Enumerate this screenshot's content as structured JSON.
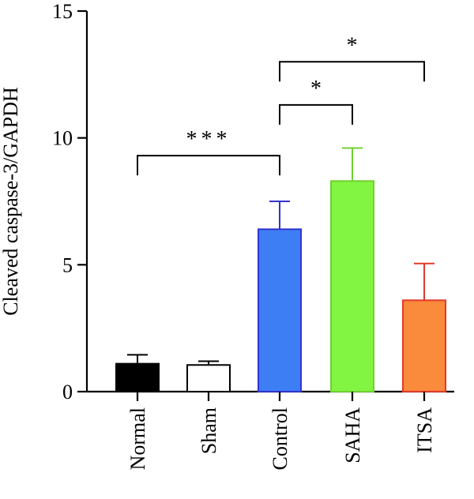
{
  "chart_data": {
    "type": "bar",
    "title": "",
    "xlabel": "",
    "ylabel": "Cleaved caspase-3/GAPDH",
    "ylim": [
      0,
      15
    ],
    "yticks": [
      "0",
      "5",
      "10",
      "15"
    ],
    "ytick_values": [
      0,
      5,
      10,
      15
    ],
    "categories": [
      "Normal",
      "Sham",
      "Control",
      "SAHA",
      "ITSA"
    ],
    "values": [
      1.1,
      1.05,
      6.4,
      8.3,
      3.6
    ],
    "errors": [
      0.35,
      0.15,
      1.1,
      1.3,
      1.45
    ],
    "bar_colors": [
      "#000000",
      "#ffffff",
      "#3d7ef5",
      "#82f542",
      "#fa8a3c"
    ],
    "edge_colors": [
      "#000000",
      "#000000",
      "#3333cc",
      "#70d030",
      "#e23a2a"
    ],
    "grid": false,
    "legend": "none",
    "significance": [
      {
        "from": "Normal",
        "to": "Control",
        "label": "***",
        "level": 9.3
      },
      {
        "from": "Control",
        "to": "SAHA",
        "label": "*",
        "level": 11.3
      },
      {
        "from": "Control",
        "to": "ITSA",
        "label": "*",
        "level": 13.0
      }
    ]
  }
}
